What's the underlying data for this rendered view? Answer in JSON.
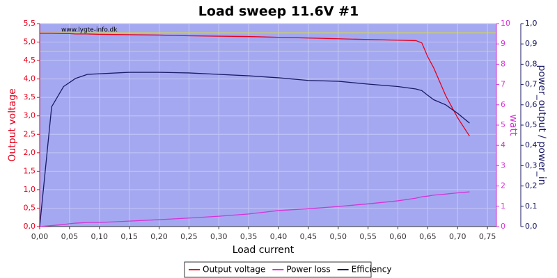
{
  "chart_data": {
    "type": "line",
    "title": "Load sweep 11.6V #1",
    "watermark": "www.lygte-info.dk",
    "x_label": "Load current",
    "y_label": "Output voltage",
    "y2_label": "watt",
    "y3_label": "power_output / power_in",
    "x": [
      0,
      0.02,
      0.04,
      0.05,
      0.06,
      0.08,
      0.1,
      0.15,
      0.2,
      0.25,
      0.3,
      0.35,
      0.4,
      0.45,
      0.5,
      0.55,
      0.6,
      0.63,
      0.64,
      0.65,
      0.66,
      0.68,
      0.7,
      0.72
    ],
    "series": [
      {
        "name": "Output voltage",
        "color": "#e8001c",
        "axis": "y",
        "values": [
          5.24,
          5.24,
          5.23,
          5.23,
          5.22,
          5.22,
          5.21,
          5.2,
          5.19,
          5.17,
          5.16,
          5.15,
          5.13,
          5.11,
          5.09,
          5.07,
          5.05,
          5.04,
          4.98,
          4.6,
          4.3,
          3.55,
          2.95,
          2.45
        ]
      },
      {
        "name": "Power loss",
        "color": "#d633d6",
        "axis": "y2",
        "values": [
          0,
          0.05,
          0.1,
          0.14,
          0.17,
          0.2,
          0.2,
          0.27,
          0.34,
          0.42,
          0.51,
          0.62,
          0.79,
          0.88,
          0.99,
          1.12,
          1.27,
          1.4,
          1.47,
          1.5,
          1.55,
          1.6,
          1.66,
          1.71
        ]
      },
      {
        "name": "Efficiency",
        "color": "#1a1a66",
        "axis": "y3",
        "values": [
          0,
          0.59,
          0.69,
          0.71,
          0.73,
          0.75,
          0.753,
          0.76,
          0.76,
          0.757,
          0.75,
          0.743,
          0.733,
          0.72,
          0.716,
          0.702,
          0.69,
          0.678,
          0.67,
          0.647,
          0.625,
          0.6,
          0.558,
          0.51
        ]
      }
    ],
    "reference_lines": {
      "color": "#e8e800",
      "values": [
        5.25,
        4.75
      ]
    },
    "xlim": [
      0,
      0.765
    ],
    "xticks": [
      {
        "value": 0,
        "label": "0,00"
      },
      {
        "value": 0.05,
        "label": "0,05"
      },
      {
        "value": 0.1,
        "label": "0,10"
      },
      {
        "value": 0.15,
        "label": "0,15"
      },
      {
        "value": 0.2,
        "label": "0,20"
      },
      {
        "value": 0.25,
        "label": "0,25"
      },
      {
        "value": 0.3,
        "label": "0,30"
      },
      {
        "value": 0.35,
        "label": "0,35"
      },
      {
        "value": 0.4,
        "label": "0,40"
      },
      {
        "value": 0.45,
        "label": "0,45"
      },
      {
        "value": 0.5,
        "label": "0,50"
      },
      {
        "value": 0.55,
        "label": "0,55"
      },
      {
        "value": 0.6,
        "label": "0,60"
      },
      {
        "value": 0.65,
        "label": "0,65"
      },
      {
        "value": 0.7,
        "label": "0,70"
      },
      {
        "value": 0.75,
        "label": "0,75"
      }
    ],
    "ylim": [
      0,
      5.5
    ],
    "yticks": [
      {
        "value": 0,
        "label": "0,0"
      },
      {
        "value": 0.5,
        "label": "0,5"
      },
      {
        "value": 1,
        "label": "1,0"
      },
      {
        "value": 1.5,
        "label": "1,5"
      },
      {
        "value": 2,
        "label": "2,0"
      },
      {
        "value": 2.5,
        "label": "2,5"
      },
      {
        "value": 3,
        "label": "3,0"
      },
      {
        "value": 3.5,
        "label": "3,5"
      },
      {
        "value": 4,
        "label": "4,0"
      },
      {
        "value": 4.5,
        "label": "4,5"
      },
      {
        "value": 5,
        "label": "5,0"
      },
      {
        "value": 5.5,
        "label": "5,5"
      }
    ],
    "y2lim": [
      0,
      10
    ],
    "y2ticks": [
      0,
      1,
      2,
      3,
      4,
      5,
      6,
      7,
      8,
      9,
      10
    ],
    "y3lim": [
      0,
      1
    ],
    "y3ticks": [
      {
        "value": 0,
        "label": "0,0"
      },
      {
        "value": 0.1,
        "label": "0,1"
      },
      {
        "value": 0.2,
        "label": "0,2"
      },
      {
        "value": 0.3,
        "label": "0,3"
      },
      {
        "value": 0.4,
        "label": "0,4"
      },
      {
        "value": 0.5,
        "label": "0,5"
      },
      {
        "value": 0.6,
        "label": "0,6"
      },
      {
        "value": 0.7,
        "label": "0,7"
      },
      {
        "value": 0.8,
        "label": "0,8"
      },
      {
        "value": 0.9,
        "label": "0,9"
      },
      {
        "value": 1,
        "label": "1,0"
      }
    ],
    "grid": true,
    "legend": "bottom",
    "plot_color": "#a4a8f0"
  }
}
